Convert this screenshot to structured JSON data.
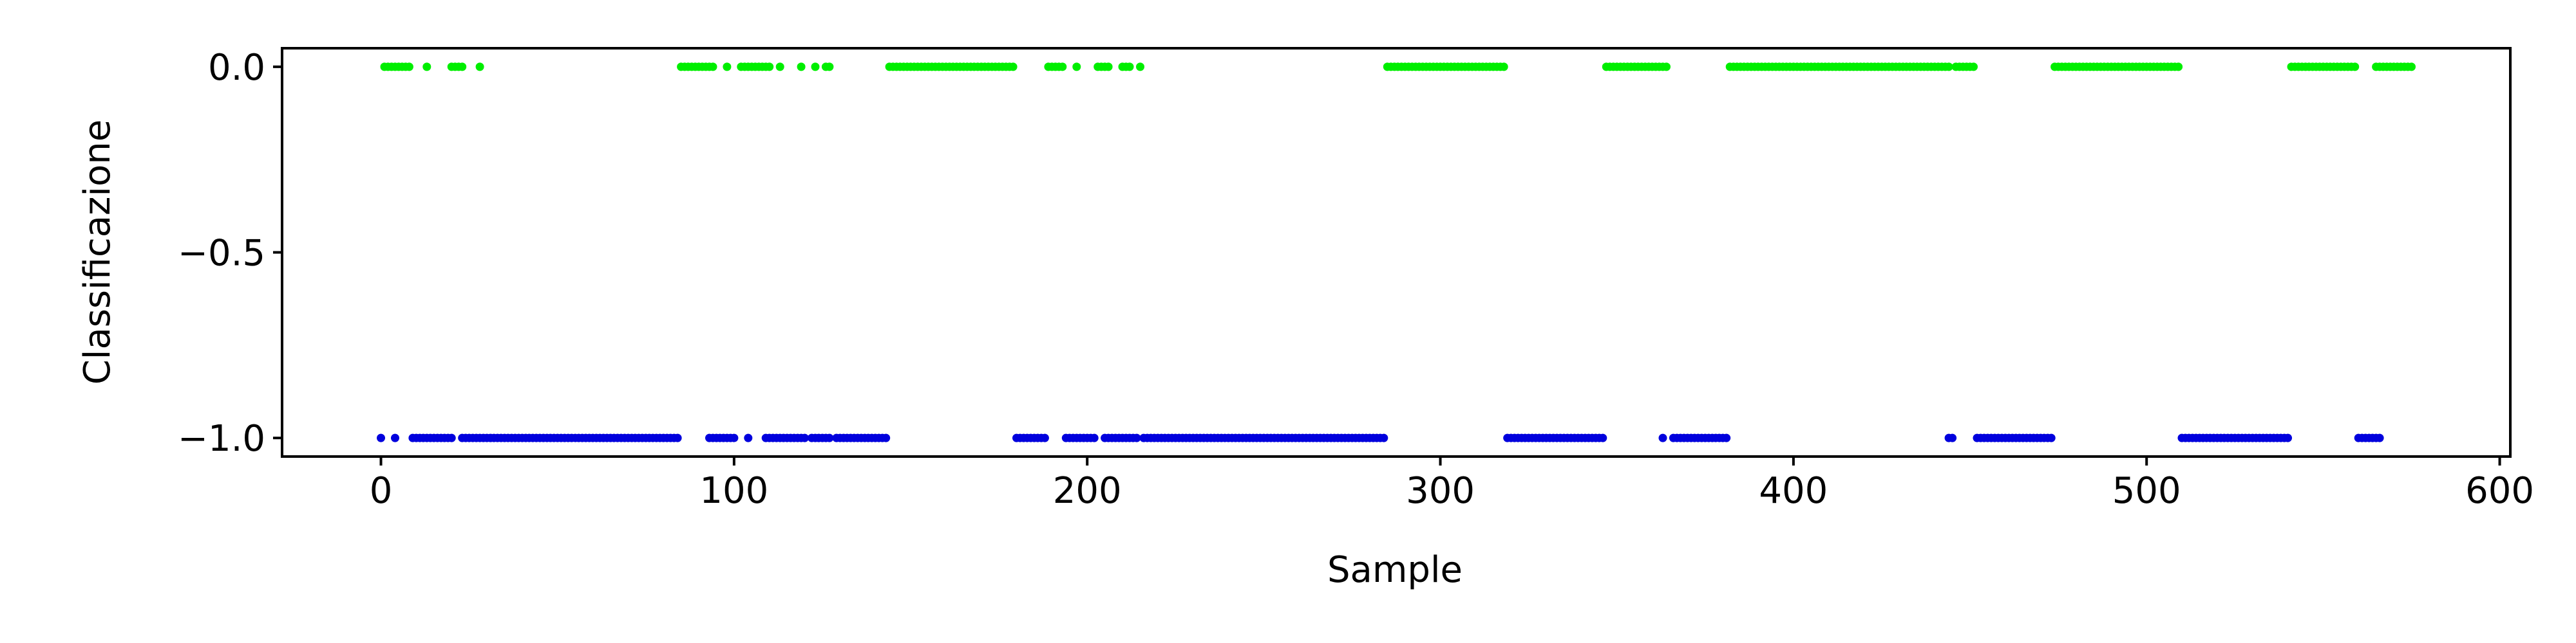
{
  "chart_data": {
    "type": "scatter",
    "title": "",
    "xlabel": "Sample",
    "ylabel": "Classificazione",
    "xlim": [
      -28,
      603
    ],
    "ylim": [
      -1.05,
      0.05
    ],
    "xticks": [
      0,
      100,
      200,
      300,
      400,
      500,
      600
    ],
    "xtick_labels": [
      "0",
      "100",
      "200",
      "300",
      "400",
      "500",
      "600"
    ],
    "yticks": [
      0.0,
      -0.5,
      -1.0
    ],
    "ytick_labels": [
      "0.0",
      "−0.5",
      "−1.0"
    ],
    "grid": false,
    "legend": "none",
    "series": [
      {
        "color": "#00ee00",
        "y": 0,
        "runs": [
          [
            1,
            8
          ],
          [
            13,
            13
          ],
          [
            20,
            23
          ],
          [
            28,
            28
          ],
          [
            85,
            94
          ],
          [
            98,
            98
          ],
          [
            102,
            110
          ],
          [
            113,
            113
          ],
          [
            119,
            119
          ],
          [
            123,
            123
          ],
          [
            126,
            127
          ],
          [
            144,
            179
          ],
          [
            189,
            193
          ],
          [
            197,
            197
          ],
          [
            203,
            206
          ],
          [
            210,
            212
          ],
          [
            215,
            215
          ],
          [
            285,
            318
          ],
          [
            347,
            364
          ],
          [
            382,
            444
          ],
          [
            446,
            451
          ],
          [
            474,
            509
          ],
          [
            541,
            559
          ],
          [
            565,
            575
          ]
        ]
      },
      {
        "color": "#0000dd",
        "y": -1,
        "runs": [
          [
            0,
            0
          ],
          [
            4,
            4
          ],
          [
            9,
            20
          ],
          [
            23,
            84
          ],
          [
            93,
            100
          ],
          [
            104,
            104
          ],
          [
            109,
            120
          ],
          [
            122,
            127
          ],
          [
            129,
            143
          ],
          [
            180,
            188
          ],
          [
            194,
            202
          ],
          [
            205,
            214
          ],
          [
            216,
            284
          ],
          [
            319,
            346
          ],
          [
            363,
            363
          ],
          [
            366,
            381
          ],
          [
            444,
            445
          ],
          [
            452,
            473
          ],
          [
            510,
            540
          ],
          [
            560,
            566
          ]
        ]
      }
    ]
  }
}
